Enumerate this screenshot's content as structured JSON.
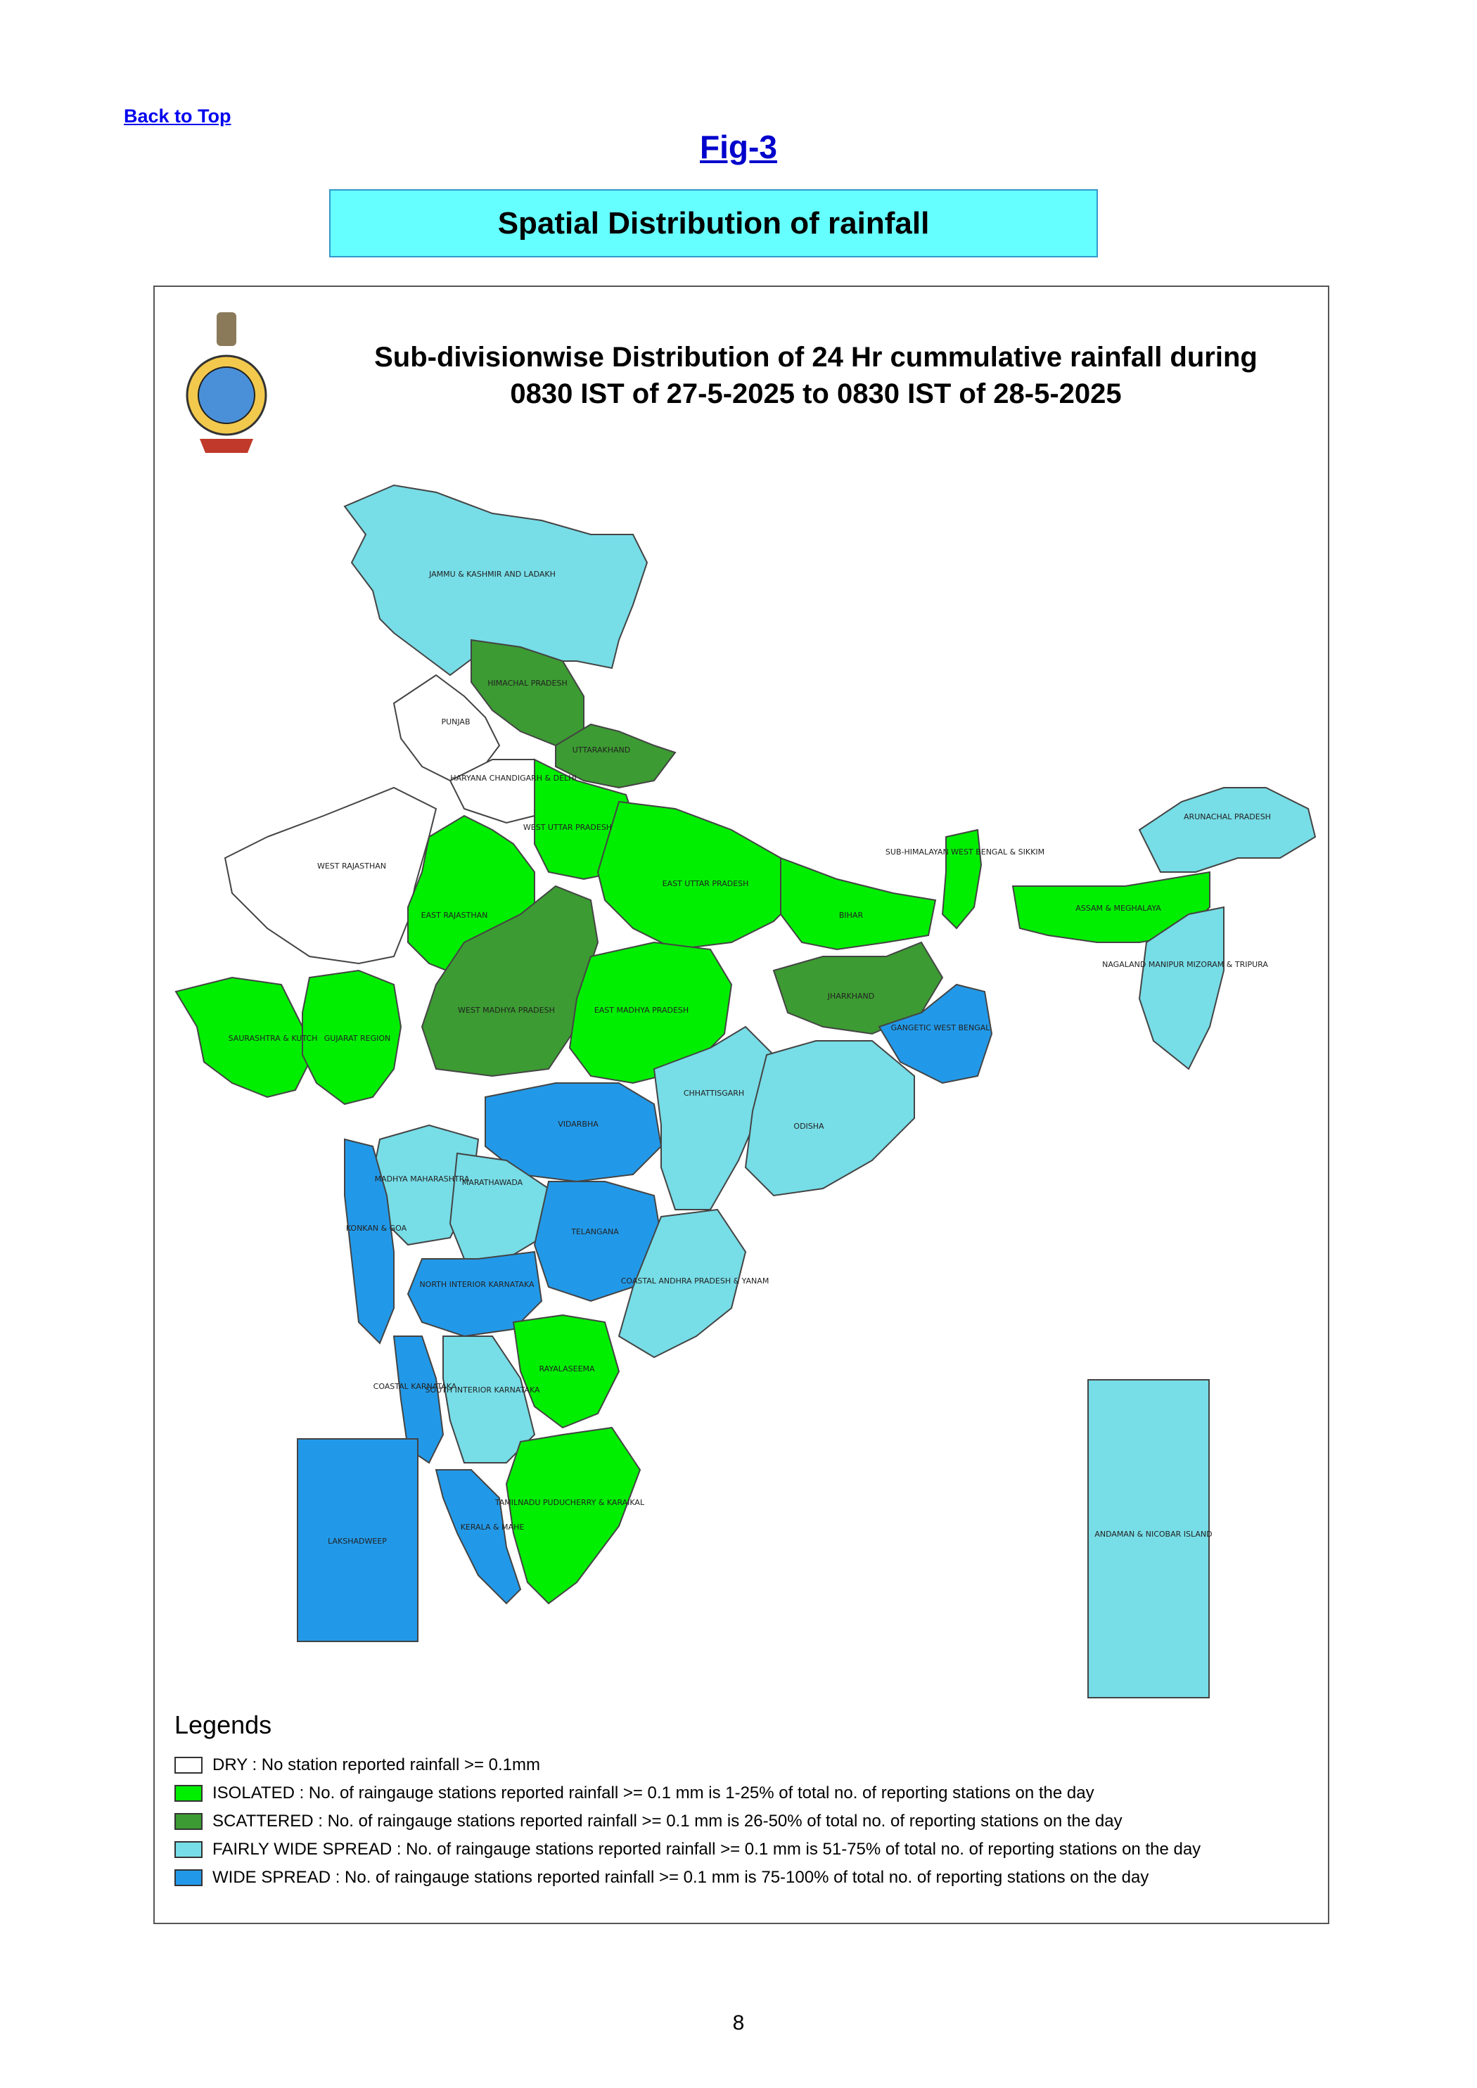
{
  "header": {
    "back_link": "Back to Top",
    "fig_label": "Fig-3",
    "section_title": "Spatial Distribution of rainfall"
  },
  "map": {
    "title_line1": "Sub-divisionwise Distribution of 24 Hr cummulative rainfall during",
    "title_line2": "0830 IST of 27-5-2025 to 0830 IST of 28-5-2025",
    "colors": {
      "dry": "#ffffff",
      "isolated": "#00ee00",
      "scattered": "#3c9b32",
      "fairly_wide": "#77dde7",
      "wide": "#2299e8"
    },
    "regions": [
      {
        "name": "JAMMU & KASHMIR AND LADAKH",
        "category": "fairly_wide"
      },
      {
        "name": "HIMACHAL PRADESH",
        "category": "scattered"
      },
      {
        "name": "PUNJAB",
        "category": "dry"
      },
      {
        "name": "UTTARAKHAND",
        "category": "scattered"
      },
      {
        "name": "HARYANA CHANDIGARH & DELHI",
        "category": "dry"
      },
      {
        "name": "WEST RAJASTHAN",
        "category": "dry"
      },
      {
        "name": "EAST RAJASTHAN",
        "category": "isolated"
      },
      {
        "name": "WEST UTTAR PRADESH",
        "category": "isolated"
      },
      {
        "name": "EAST UTTAR PRADESH",
        "category": "isolated"
      },
      {
        "name": "BIHAR",
        "category": "isolated"
      },
      {
        "name": "SUB-HIMALAYAN WEST BENGAL & SIKKIM",
        "category": "isolated"
      },
      {
        "name": "ARUNACHAL PRADESH",
        "category": "fairly_wide"
      },
      {
        "name": "ASSAM & MEGHALAYA",
        "category": "isolated"
      },
      {
        "name": "NAGALAND MANIPUR MIZORAM & TRIPURA",
        "category": "fairly_wide"
      },
      {
        "name": "SAURASHTRA & KUTCH",
        "category": "isolated"
      },
      {
        "name": "GUJARAT REGION",
        "category": "isolated"
      },
      {
        "name": "WEST MADHYA PRADESH",
        "category": "scattered"
      },
      {
        "name": "EAST MADHYA PRADESH",
        "category": "isolated"
      },
      {
        "name": "JHARKHAND",
        "category": "scattered"
      },
      {
        "name": "GANGETIC WEST BENGAL",
        "category": "wide"
      },
      {
        "name": "CHHATTISGARH",
        "category": "fairly_wide"
      },
      {
        "name": "ODISHA",
        "category": "fairly_wide"
      },
      {
        "name": "VIDARBHA",
        "category": "wide"
      },
      {
        "name": "MADHYA MAHARASHTRA",
        "category": "fairly_wide"
      },
      {
        "name": "MARATHAWADA",
        "category": "fairly_wide"
      },
      {
        "name": "KONKAN & GOA",
        "category": "wide"
      },
      {
        "name": "TELANGANA",
        "category": "wide"
      },
      {
        "name": "COASTAL ANDHRA PRADESH & YANAM",
        "category": "fairly_wide"
      },
      {
        "name": "NORTH INTERIOR KARNATAKA",
        "category": "wide"
      },
      {
        "name": "RAYALASEEMA",
        "category": "isolated"
      },
      {
        "name": "COASTAL KARNATAKA",
        "category": "wide"
      },
      {
        "name": "SOUTH INTERIOR KARNATAKA",
        "category": "fairly_wide"
      },
      {
        "name": "TAMILNADU PUDUCHERRY & KARAIKAL",
        "category": "isolated"
      },
      {
        "name": "KERALA & MAHE",
        "category": "wide"
      },
      {
        "name": "LAKSHADWEEP",
        "category": "wide"
      },
      {
        "name": "ANDAMAN & NICOBAR ISLAND",
        "category": "fairly_wide"
      }
    ]
  },
  "legend": {
    "title": "Legends",
    "items": [
      {
        "category": "dry",
        "text": "DRY : No station reported rainfall >= 0.1mm"
      },
      {
        "category": "isolated",
        "text": "ISOLATED : No. of raingauge stations reported rainfall >= 0.1 mm is 1-25% of total no. of reporting stations on the day"
      },
      {
        "category": "scattered",
        "text": "SCATTERED : No. of raingauge stations reported rainfall >= 0.1 mm is 26-50% of total no. of reporting stations on the day"
      },
      {
        "category": "fairly_wide",
        "text": "FAIRLY WIDE SPREAD : No. of raingauge stations reported rainfall >= 0.1 mm is 51-75% of total no. of reporting stations on the day"
      },
      {
        "category": "wide",
        "text": "WIDE SPREAD : No. of raingauge stations reported rainfall >= 0.1 mm is 75-100% of total no. of reporting stations on the day"
      }
    ]
  },
  "footer": {
    "page_number": "8"
  }
}
